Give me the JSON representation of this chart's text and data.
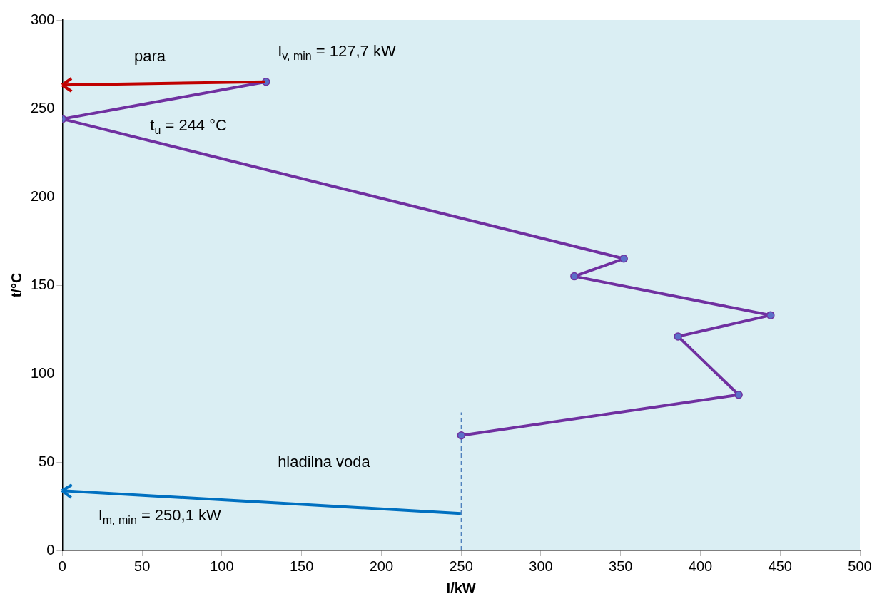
{
  "chart_data": {
    "type": "line",
    "xlabel": "I/kW",
    "ylabel": "t/°C",
    "xlim": [
      0,
      500
    ],
    "xticks": [
      0,
      50,
      100,
      150,
      200,
      250,
      300,
      350,
      400,
      450,
      500
    ],
    "ylim": [
      0,
      300
    ],
    "yticks": [
      0,
      50,
      100,
      150,
      200,
      250,
      300
    ],
    "grid": false,
    "marker": "circle",
    "series": [
      {
        "color": "#7030a0",
        "x": [
          127.7,
          0,
          352,
          321,
          444,
          386,
          424,
          250.1
        ],
        "values": [
          265,
          244,
          165,
          155,
          133,
          121,
          88,
          65
        ]
      },
      {
        "color": "#4f81bd",
        "marker": "none",
        "line_style": "dashed",
        "x": [
          250.1,
          250.1
        ],
        "values": [
          0,
          78
        ]
      }
    ],
    "annotations": [
      "para",
      "I$_{v, min}$ = 127,7 kW",
      "t$_{u}$ = 244 °C",
      "hladilna voda",
      "I$_{m, min}$ = 250,1 kW"
    ]
  }
}
